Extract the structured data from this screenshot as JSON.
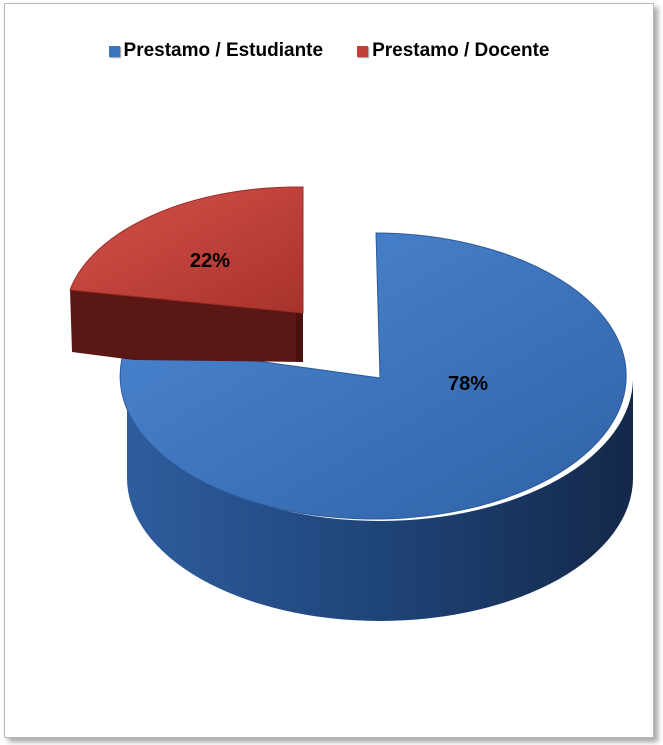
{
  "chart_data": {
    "type": "pie",
    "title": "",
    "legend_position": "top",
    "slices": [
      {
        "label": "Prestamo / Estudiante",
        "value": 78,
        "value_label": "78%",
        "color": "#3a74c0"
      },
      {
        "label": "Prestamo / Docente",
        "value": 22,
        "value_label": "22%",
        "color": "#c0403a"
      }
    ]
  }
}
